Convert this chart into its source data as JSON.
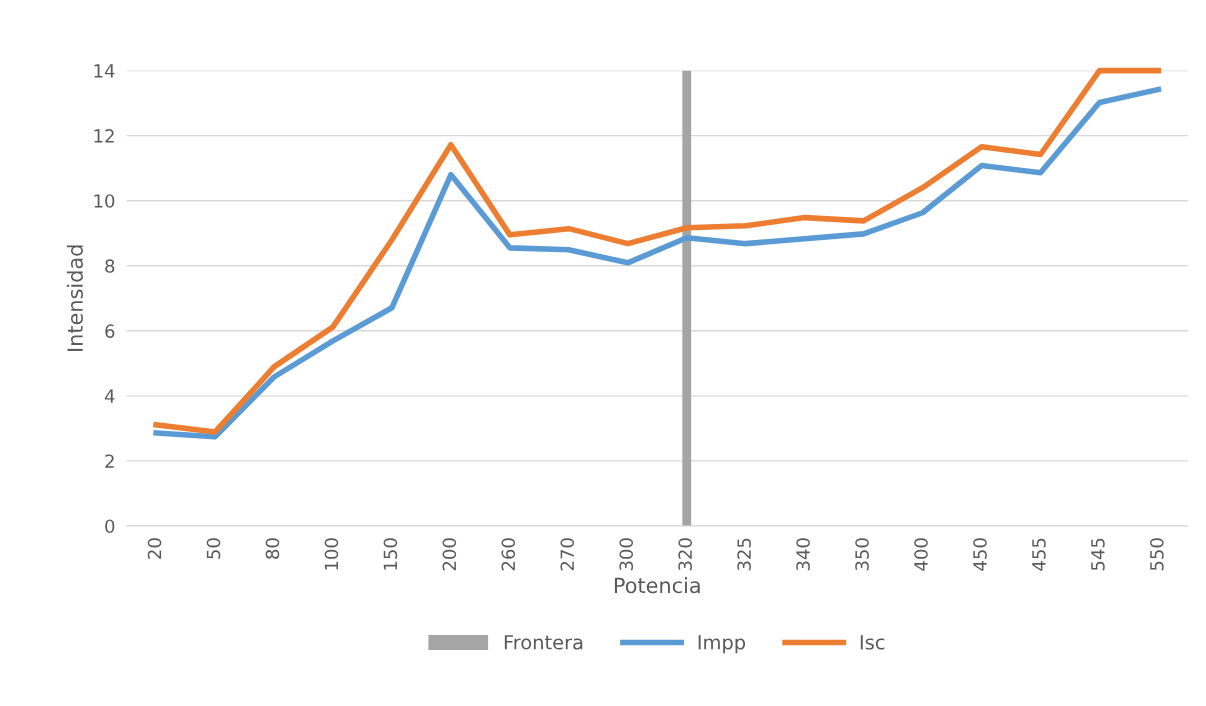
{
  "chart_data": {
    "type": "line",
    "xlabel": "Potencia",
    "ylabel": "Intensidad",
    "categories": [
      "20",
      "50",
      "80",
      "100",
      "150",
      "200",
      "260",
      "270",
      "300",
      "320",
      "325",
      "340",
      "350",
      "400",
      "450",
      "455",
      "545",
      "550"
    ],
    "series": [
      {
        "name": "Frontera",
        "type": "bar",
        "color": "#a5a5a5",
        "values": [
          null,
          null,
          null,
          null,
          null,
          null,
          null,
          null,
          null,
          14,
          null,
          null,
          null,
          null,
          null,
          null,
          null,
          null
        ]
      },
      {
        "name": "Impp",
        "color": "#5b9bd5",
        "values": [
          2.86,
          2.74,
          4.58,
          5.69,
          6.71,
          10.8,
          8.55,
          8.49,
          8.09,
          8.86,
          8.68,
          8.83,
          8.98,
          9.63,
          11.08,
          10.86,
          13.02,
          13.42
        ]
      },
      {
        "name": "Isc",
        "color": "#ed7d31",
        "values": [
          3.11,
          2.89,
          4.89,
          6.12,
          8.8,
          11.72,
          8.95,
          9.14,
          8.68,
          9.17,
          9.23,
          9.48,
          9.38,
          10.4,
          11.66,
          11.42,
          14,
          14
        ]
      }
    ],
    "ylim": [
      0,
      14
    ],
    "yticks": [
      0,
      2,
      4,
      6,
      8,
      10,
      12,
      14
    ],
    "grid": "y",
    "legend": "bottom",
    "marker": "none",
    "line_style": "solid"
  }
}
